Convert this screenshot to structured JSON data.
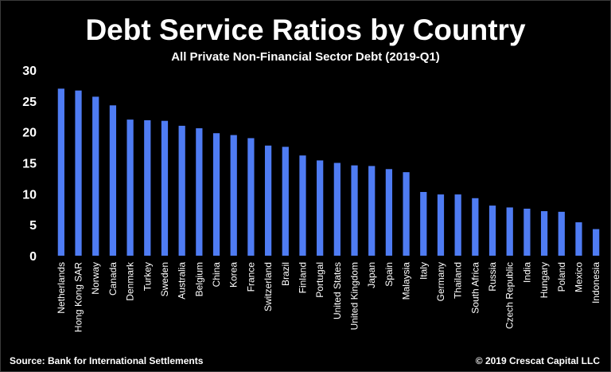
{
  "chart_data": {
    "type": "bar",
    "title": "Debt Service Ratios by Country",
    "subtitle": "All Private Non-Financial Sector Debt (2019-Q1)",
    "xlabel": "",
    "ylabel": "",
    "ylim": [
      0,
      30
    ],
    "yticks": [
      0,
      5,
      10,
      15,
      20,
      25,
      30
    ],
    "grid": false,
    "legend": "none",
    "bar_color": "#4f7cf3",
    "categories": [
      "Netherlands",
      "Hong Kong SAR",
      "Norway",
      "Canada",
      "Denmark",
      "Turkey",
      "Sweden",
      "Australia",
      "Belgium",
      "China",
      "Korea",
      "France",
      "Switzerland",
      "Brazil",
      "Finland",
      "Portugal",
      "United States",
      "United Kingdom",
      "Japan",
      "Spain",
      "Malaysia",
      "Italy",
      "Germany",
      "Thailand",
      "South Africa",
      "Russia",
      "Czech Republic",
      "India",
      "Hungary",
      "Poland",
      "Mexico",
      "Indonesia"
    ],
    "values": [
      27.0,
      26.7,
      25.7,
      24.3,
      22.0,
      21.9,
      21.8,
      21.0,
      20.6,
      19.8,
      19.5,
      19.0,
      17.8,
      17.6,
      16.2,
      15.4,
      15.0,
      14.6,
      14.5,
      14.0,
      13.5,
      10.3,
      9.9,
      9.9,
      9.3,
      8.1,
      7.8,
      7.6,
      7.2,
      7.1,
      5.4,
      4.3
    ]
  },
  "footer": {
    "source": "Source: Bank for International Settlements",
    "copyright": "© 2019 Crescat Capital LLC"
  }
}
